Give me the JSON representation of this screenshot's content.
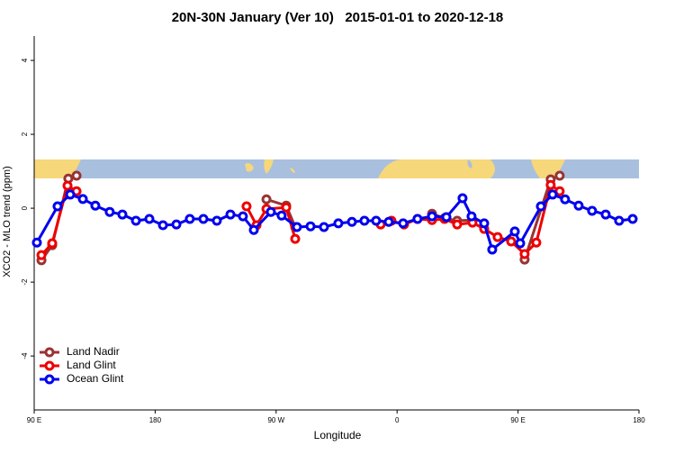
{
  "chart_data": {
    "type": "line",
    "title": "20N-30N January (Ver 10)   2015-01-01 to 2020-12-18",
    "x_label": "Longitude",
    "y_label": "XCO2 - MLO trend (ppm)",
    "xlim": [
      90,
      540
    ],
    "ylim": [
      -5.46,
      4.66
    ],
    "xticks": [
      {
        "value": 90,
        "label": "90 E"
      },
      180,
      {
        "value": 270,
        "label": "90 W"
      },
      {
        "value": 360,
        "label": "0"
      },
      {
        "value": 450,
        "label": "90 E"
      },
      {
        "value": 540,
        "label": "180"
      }
    ],
    "yticks": [
      -4,
      -2,
      0,
      2,
      4
    ],
    "legend": "bottom-left",
    "series": [
      {
        "name": "Land Nadir",
        "color": "#993333",
        "x": [
          95.4,
          103.4,
          115.4,
          121.5,
          null,
          262.8,
          277.5,
          284.2,
          null,
          386,
          395.3,
          404.7,
          416.1,
          null,
          454.9,
          474.3,
          481
        ],
        "values": [
          -1.41,
          -1.0,
          0.8,
          0.88,
          null,
          0.24,
          0.07,
          -0.51,
          null,
          -0.15,
          -0.27,
          -0.34,
          -0.32,
          null,
          -1.39,
          0.78,
          0.88
        ]
      },
      {
        "name": "Land Glint",
        "color": "#ee0000",
        "x": [
          95.4,
          103.4,
          114.8,
          121.5,
          null,
          248,
          255.4,
          262.8,
          277.5,
          284.2,
          null,
          347.8,
          355.8,
          365.2,
          375.2,
          386,
          395.3,
          404.7,
          416.1,
          424.8,
          434.8,
          444.9,
          454.9,
          463.6,
          474.3,
          481
        ],
        "values": [
          -1.27,
          -0.95,
          0.61,
          0.46,
          null,
          0.05,
          -0.46,
          -0.02,
          0.02,
          -0.83,
          null,
          -0.44,
          -0.34,
          -0.44,
          -0.29,
          -0.32,
          -0.29,
          -0.44,
          -0.39,
          -0.56,
          -0.78,
          -0.9,
          -1.24,
          -0.93,
          0.63,
          0.46
        ]
      },
      {
        "name": "Ocean Glint",
        "color": "#0000ee",
        "x": [
          92,
          107.4,
          116.8,
          126.2,
          135.5,
          146.2,
          155.6,
          165.7,
          175.7,
          185.8,
          195.8,
          205.8,
          215.9,
          225.9,
          236,
          245.3,
          253.4,
          266.1,
          274.1,
          285.5,
          295.6,
          305.6,
          316.3,
          326.4,
          335.7,
          344.4,
          353.8,
          364.5,
          375.2,
          386,
          396.7,
          408.7,
          415.4,
          424.8,
          430.8,
          447.6,
          451.6,
          467,
          475.7,
          485,
          495.1,
          505.1,
          515.2,
          525.2,
          535.3
        ],
        "values": [
          -0.93,
          0.05,
          0.37,
          0.25,
          0.07,
          -0.1,
          -0.17,
          -0.34,
          -0.29,
          -0.46,
          -0.44,
          -0.29,
          -0.29,
          -0.34,
          -0.17,
          -0.22,
          -0.59,
          -0.1,
          -0.2,
          -0.51,
          -0.49,
          -0.51,
          -0.41,
          -0.37,
          -0.34,
          -0.34,
          -0.37,
          -0.41,
          -0.29,
          -0.22,
          -0.24,
          0.27,
          -0.22,
          -0.41,
          -1.12,
          -0.63,
          -0.95,
          0.05,
          0.37,
          0.24,
          0.07,
          -0.07,
          -0.17,
          -0.34,
          -0.29
        ]
      }
    ]
  }
}
